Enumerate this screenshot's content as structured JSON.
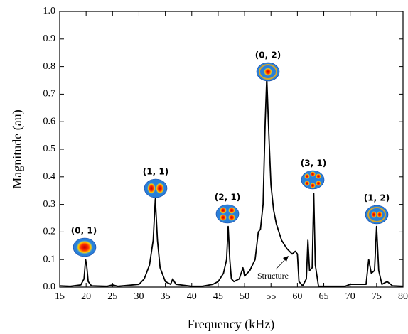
{
  "chart_data": {
    "type": "line",
    "x_label": "Frequency (kHz)",
    "y_label": "Magnitude (au)",
    "xlim": [
      15,
      80
    ],
    "ylim": [
      0,
      1
    ],
    "xticks": [
      15,
      20,
      25,
      30,
      35,
      40,
      45,
      50,
      55,
      60,
      65,
      70,
      75,
      80
    ],
    "yticks": [
      {
        "value": 0,
        "label": "0.0"
      },
      0.1,
      0.2,
      0.3,
      0.4,
      0.5,
      0.6,
      0.7,
      0.8,
      0.9,
      {
        "value": 1,
        "label": "1.0"
      }
    ],
    "series": [
      {
        "color": "#000000",
        "x": [
          15,
          17,
          19,
          19.6,
          19.9,
          20.1,
          20.4,
          21,
          24,
          25,
          26,
          30,
          31,
          32,
          32.7,
          33.1,
          33.5,
          34,
          35,
          36,
          36.4,
          37,
          40,
          42,
          44,
          45,
          46,
          46.6,
          46.9,
          47.2,
          47.5,
          48,
          49,
          49.7,
          50,
          51,
          52,
          52.6,
          53,
          53.5,
          53.9,
          54.2,
          54.6,
          55,
          55.5,
          56,
          57,
          58,
          59,
          59.6,
          60,
          60.3,
          61,
          61.7,
          62,
          62.3,
          62.8,
          63.1,
          63.4,
          64,
          69,
          70,
          73,
          73.5,
          74,
          74.6,
          75,
          75.4,
          76,
          77,
          78,
          80
        ],
        "values": [
          0.005,
          0.003,
          0.008,
          0.03,
          0.1,
          0.08,
          0.02,
          0.005,
          0.003,
          0.008,
          0.003,
          0.01,
          0.03,
          0.08,
          0.17,
          0.32,
          0.17,
          0.07,
          0.02,
          0.01,
          0.03,
          0.01,
          0.003,
          0.003,
          0.01,
          0.02,
          0.05,
          0.1,
          0.22,
          0.1,
          0.03,
          0.02,
          0.03,
          0.07,
          0.04,
          0.06,
          0.1,
          0.2,
          0.21,
          0.3,
          0.6,
          0.76,
          0.55,
          0.37,
          0.28,
          0.23,
          0.17,
          0.14,
          0.12,
          0.13,
          0.12,
          0.02,
          0.005,
          0.03,
          0.17,
          0.06,
          0.07,
          0.34,
          0.08,
          0.003,
          0.003,
          0.01,
          0.01,
          0.1,
          0.05,
          0.06,
          0.22,
          0.06,
          0.01,
          0.02,
          0.005,
          0.003
        ]
      }
    ],
    "annotations": [
      "(0, 1)",
      "(1, 1)",
      "(2, 1)",
      "(0, 2)",
      "(3, 1)",
      "(1, 2)",
      "Structure"
    ]
  }
}
